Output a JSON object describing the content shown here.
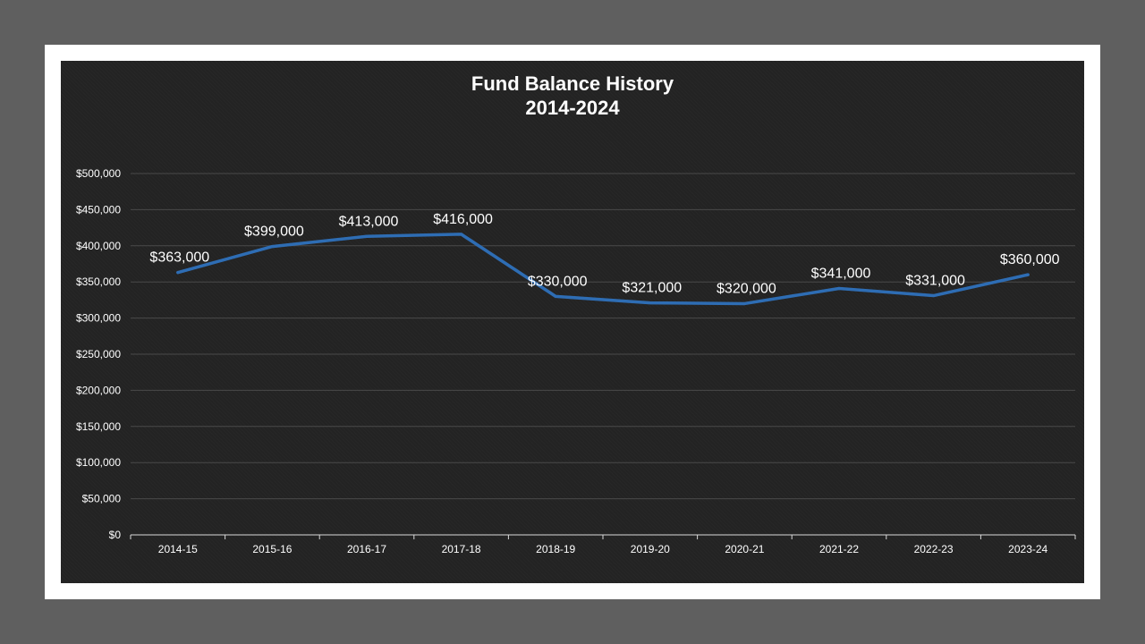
{
  "chart_data": {
    "type": "line",
    "title": "Fund Balance History",
    "subtitle": "2014-2024",
    "xlabel": "",
    "ylabel": "",
    "categories": [
      "2014-15",
      "2015-16",
      "2016-17",
      "2017-18",
      "2018-19",
      "2019-20",
      "2020-21",
      "2021-22",
      "2022-23",
      "2023-24"
    ],
    "series": [
      {
        "values": [
          363000,
          399000,
          413000,
          416000,
          330000,
          321000,
          320000,
          341000,
          331000,
          360000
        ],
        "labels": [
          "$363,000",
          "$399,000",
          "$413,000",
          "$416,000",
          "$330,000",
          "$321,000",
          "$320,000",
          "$341,000",
          "$331,000",
          "$360,000"
        ]
      }
    ],
    "ylim": [
      0,
      500000
    ],
    "ytick_labels": [
      "$0",
      "$50,000",
      "$100,000",
      "$150,000",
      "$200,000",
      "$250,000",
      "$300,000",
      "$350,000",
      "$400,000",
      "$450,000",
      "$500,000"
    ],
    "grid": true,
    "legend": "none",
    "line_color": "#2e6db4",
    "background_color": "#232323",
    "text_color": "#ffffff"
  }
}
